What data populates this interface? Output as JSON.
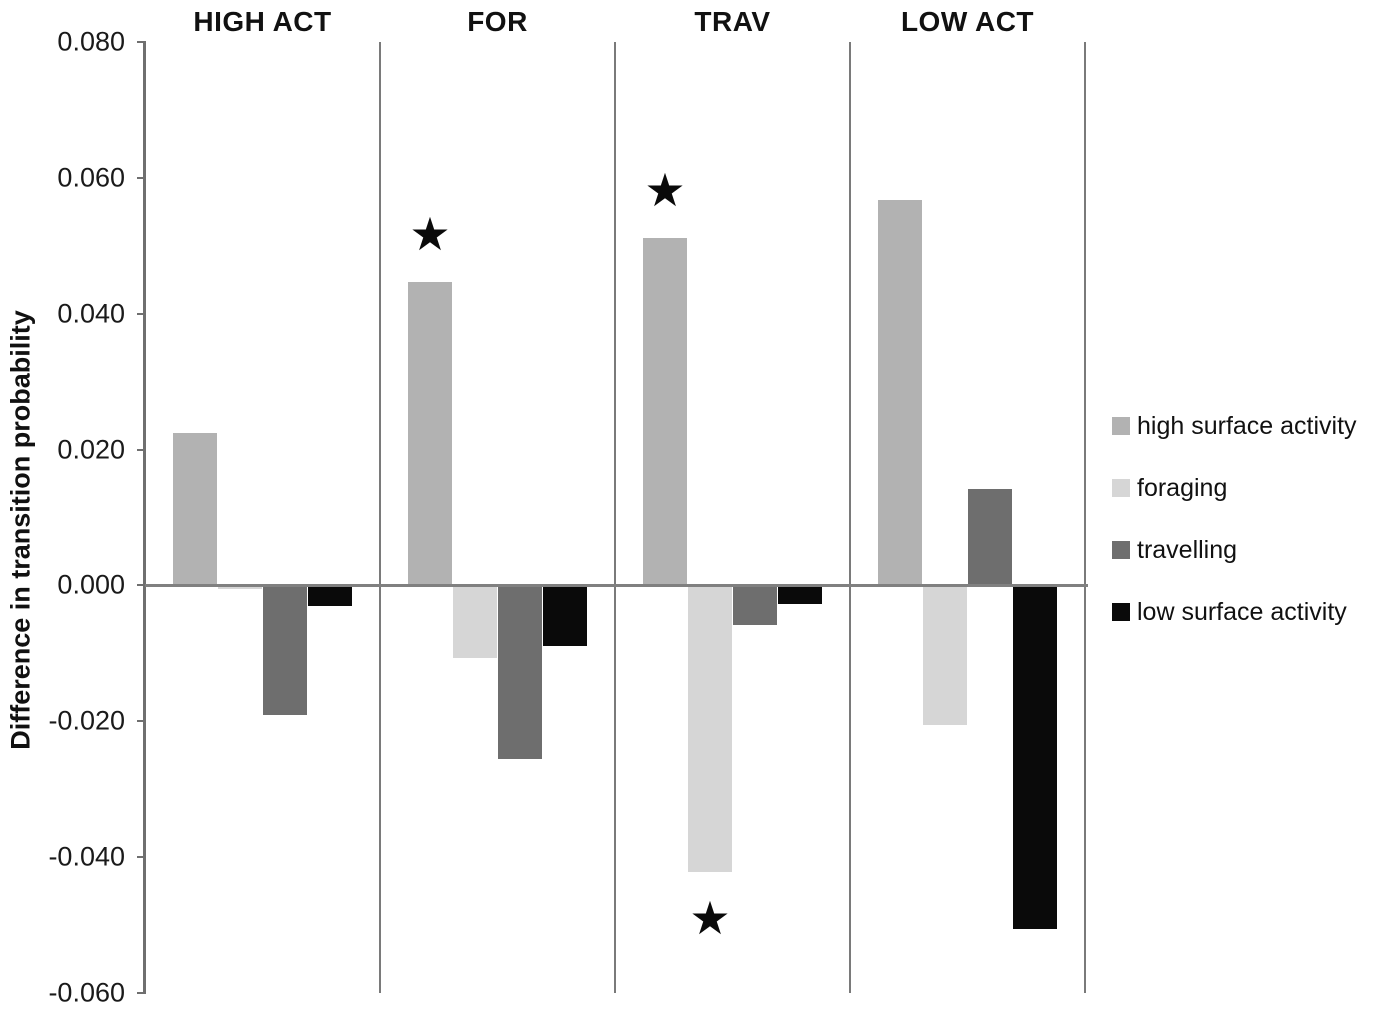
{
  "chart_data": {
    "type": "bar",
    "title": "",
    "ylabel": "Difference in transition probability",
    "xlabel": "",
    "ylim": [
      -0.06,
      0.08
    ],
    "ytick_step": 0.02,
    "ytick_labels": [
      "0.080",
      "0.060",
      "0.040",
      "0.020",
      "0.000",
      "-0.020",
      "-0.040",
      "-0.060"
    ],
    "grid": false,
    "legend_position": "right",
    "categories": [
      "HIGH ACT",
      "FOR",
      "TRAV",
      "LOW ACT"
    ],
    "series": [
      {
        "name": "high surface activity",
        "color": "#b2b2b2",
        "values": [
          0.0225,
          0.0447,
          0.0511,
          0.0568
        ]
      },
      {
        "name": "foraging",
        "color": "#d6d6d6",
        "values": [
          -0.0005,
          -0.0107,
          -0.0422,
          -0.0206
        ]
      },
      {
        "name": "travelling",
        "color": "#6e6e6e",
        "values": [
          -0.0191,
          -0.0256,
          -0.0059,
          0.0142
        ]
      },
      {
        "name": "low surface activity",
        "color": "#0a0a0a",
        "values": [
          -0.0031,
          -0.0089,
          -0.0027,
          -0.0506
        ]
      }
    ],
    "annotations": [
      {
        "symbol": "★",
        "category": "FOR",
        "series": "high surface activity",
        "position": "above"
      },
      {
        "symbol": "★",
        "category": "TRAV",
        "series": "high surface activity",
        "position": "above"
      },
      {
        "symbol": "★",
        "category": "TRAV",
        "series": "foraging",
        "position": "below"
      }
    ]
  }
}
